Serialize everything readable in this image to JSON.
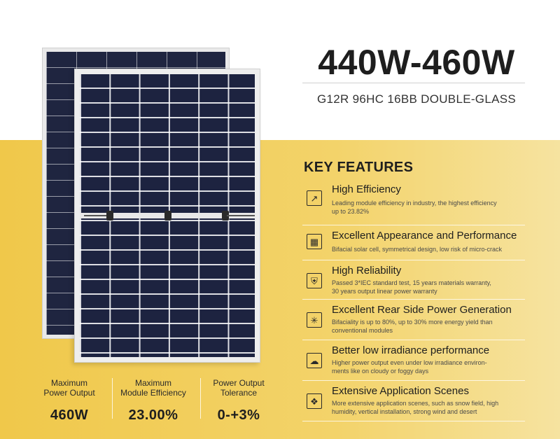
{
  "header": {
    "title": "440W-460W",
    "subtitle": "G12R 96HC 16BB DOUBLE-GLASS"
  },
  "stats": [
    {
      "label_line1": "Maximum",
      "label_line2": "Power Output",
      "value": "460W"
    },
    {
      "label_line1": "Maximum",
      "label_line2": "Module Efficiency",
      "value": "23.00%"
    },
    {
      "label_line1": "Power Output",
      "label_line2": "Tolerance",
      "value": "0-+3%"
    }
  ],
  "key_features": {
    "title": "KEY FEATURES",
    "items": [
      {
        "icon": "efficiency-chart-icon",
        "title": "High Efficiency",
        "desc_line1": "Leading module efficiency in industry, the highest efficiency",
        "desc_line2": "up to 23.82%"
      },
      {
        "icon": "solar-panel-icon",
        "title": "Excellent Appearance and Performance",
        "desc_line1": "Bifacial solar cell, symmetrical design, low risk of micro-crack",
        "desc_line2": ""
      },
      {
        "icon": "shield-icon",
        "title": "High Reliability",
        "desc_line1": "Passed 3*IEC standard test, 15 years materials warranty,",
        "desc_line2": "30 years output linear power warranty"
      },
      {
        "icon": "rear-light-icon",
        "title": "Excellent Rear Side Power Generation",
        "desc_line1": "Bifaciality is up to 80%, up to 30% more energy yield than",
        "desc_line2": "conventional modules"
      },
      {
        "icon": "low-irradiance-icon",
        "title": "Better low irradiance performance",
        "desc_line1": "Higher power output even under low irradiance  environ-",
        "desc_line2": "ments like on cloudy or foggy days"
      },
      {
        "icon": "application-scenes-icon",
        "title": "Extensive Application Scenes",
        "desc_line1": "More extensive application scenes, such as snow field, high",
        "desc_line2": "humidity, vertical installation, strong wind and desert"
      }
    ]
  }
}
